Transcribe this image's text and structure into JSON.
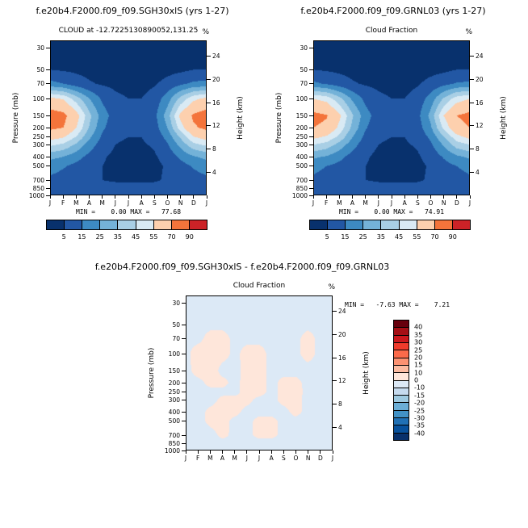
{
  "axes": {
    "pressure_label": "Pressure (mb)",
    "height_label": "Height (km)",
    "pressure_ticks": [
      30,
      50,
      70,
      100,
      150,
      200,
      250,
      300,
      400,
      500,
      700,
      850,
      1000
    ],
    "height_ticks": [
      24,
      20,
      16,
      12,
      8,
      4
    ],
    "months": [
      "J",
      "F",
      "M",
      "A",
      "M",
      "J",
      "J",
      "A",
      "S",
      "O",
      "N",
      "D",
      "J"
    ],
    "top_pressure": 25,
    "bottom_pressure": 1000
  },
  "chart_data": [
    {
      "type": "heatmap",
      "header": "f.e20b4.F2000.f09_f09.SGH30xlS (yrs 1-27)",
      "title": "CLOUD at -12.7225130890052,131.25",
      "units": "%",
      "min_max": "MIN =    0.00 MAX =   77.68",
      "min": 0.0,
      "max": 77.68,
      "x": [
        "J",
        "F",
        "M",
        "A",
        "M",
        "J",
        "J",
        "A",
        "S",
        "O",
        "N",
        "D",
        "J"
      ],
      "y_pressure_mb": [
        30,
        50,
        70,
        100,
        150,
        200,
        250,
        300,
        400,
        500,
        700,
        850,
        1000
      ],
      "levels": [
        5,
        15,
        25,
        35,
        45,
        55,
        70,
        90
      ],
      "colors": [
        "#08316d",
        "#2257a4",
        "#3d8ac2",
        "#74b2d8",
        "#a9cfe5",
        "#d9eaf4",
        "#fdd0ae",
        "#f4743b",
        "#cc2227"
      ],
      "colorbar_labels": [
        "5",
        "15",
        "25",
        "35",
        "45",
        "55",
        "70",
        "90"
      ],
      "values": [
        [
          1,
          1,
          1,
          0,
          0,
          0,
          0,
          0,
          0,
          0,
          1,
          1,
          1
        ],
        [
          5,
          4,
          3,
          2,
          1,
          1,
          1,
          1,
          1,
          2,
          3,
          5,
          5
        ],
        [
          18,
          15,
          10,
          6,
          4,
          3,
          2,
          2,
          4,
          8,
          13,
          17,
          18
        ],
        [
          58,
          54,
          40,
          25,
          13,
          7,
          5,
          5,
          9,
          20,
          38,
          52,
          58
        ],
        [
          77,
          74,
          60,
          38,
          20,
          10,
          8,
          8,
          12,
          30,
          58,
          72,
          77
        ],
        [
          73,
          70,
          55,
          34,
          17,
          8,
          6,
          6,
          10,
          25,
          50,
          68,
          73
        ],
        [
          60,
          56,
          44,
          27,
          13,
          6,
          5,
          5,
          8,
          18,
          36,
          54,
          60
        ],
        [
          47,
          43,
          33,
          20,
          10,
          5,
          4,
          4,
          6,
          14,
          28,
          42,
          47
        ],
        [
          28,
          25,
          19,
          12,
          6,
          3,
          2,
          2,
          4,
          8,
          17,
          24,
          28
        ],
        [
          19,
          16,
          12,
          8,
          5,
          3,
          2,
          2,
          3,
          6,
          11,
          16,
          19
        ],
        [
          13,
          11,
          9,
          7,
          5,
          4,
          4,
          4,
          4,
          6,
          9,
          11,
          13
        ],
        [
          15,
          13,
          11,
          10,
          8,
          8,
          7,
          7,
          8,
          9,
          11,
          13,
          15
        ],
        [
          11,
          10,
          9,
          8,
          8,
          7,
          7,
          7,
          7,
          8,
          9,
          10,
          11
        ]
      ]
    },
    {
      "type": "heatmap",
      "header": "f.e20b4.F2000.f09_f09.GRNL03 (yrs 1-27)",
      "title": "Cloud Fraction",
      "units": "%",
      "min_max": "MIN =    0.00 MAX =   74.91",
      "min": 0.0,
      "max": 74.91,
      "x": [
        "J",
        "F",
        "M",
        "A",
        "M",
        "J",
        "J",
        "A",
        "S",
        "O",
        "N",
        "D",
        "J"
      ],
      "y_pressure_mb": [
        30,
        50,
        70,
        100,
        150,
        200,
        250,
        300,
        400,
        500,
        700,
        850,
        1000
      ],
      "levels": [
        5,
        15,
        25,
        35,
        45,
        55,
        70,
        90
      ],
      "colors": [
        "#08316d",
        "#2257a4",
        "#3d8ac2",
        "#74b2d8",
        "#a9cfe5",
        "#d9eaf4",
        "#fdd0ae",
        "#f4743b",
        "#cc2227"
      ],
      "colorbar_labels": [
        "5",
        "15",
        "25",
        "35",
        "45",
        "55",
        "70",
        "90"
      ],
      "values": [
        [
          1,
          1,
          1,
          0,
          0,
          0,
          0,
          0,
          0,
          0,
          1,
          1,
          1
        ],
        [
          5,
          4,
          3,
          2,
          1,
          1,
          1,
          1,
          1,
          2,
          3,
          5,
          5
        ],
        [
          17,
          14,
          10,
          6,
          4,
          3,
          2,
          2,
          4,
          8,
          12,
          16,
          17
        ],
        [
          55,
          51,
          38,
          23,
          12,
          7,
          5,
          5,
          9,
          19,
          36,
          50,
          55
        ],
        [
          74,
          71,
          57,
          36,
          19,
          10,
          8,
          8,
          12,
          28,
          55,
          70,
          74
        ],
        [
          70,
          67,
          52,
          32,
          16,
          8,
          6,
          6,
          10,
          23,
          47,
          65,
          70
        ],
        [
          58,
          53,
          42,
          25,
          12,
          6,
          5,
          5,
          8,
          17,
          34,
          51,
          58
        ],
        [
          45,
          41,
          31,
          19,
          9,
          5,
          4,
          4,
          6,
          13,
          26,
          40,
          45
        ],
        [
          27,
          24,
          18,
          11,
          6,
          3,
          2,
          2,
          4,
          8,
          16,
          23,
          27
        ],
        [
          18,
          15,
          12,
          8,
          5,
          3,
          2,
          2,
          3,
          6,
          11,
          15,
          18
        ],
        [
          13,
          11,
          9,
          7,
          5,
          4,
          4,
          4,
          4,
          6,
          9,
          11,
          13
        ],
        [
          15,
          14,
          12,
          10,
          9,
          8,
          8,
          8,
          8,
          9,
          11,
          13,
          15
        ],
        [
          12,
          11,
          9,
          8,
          8,
          7,
          7,
          7,
          7,
          8,
          9,
          10,
          12
        ]
      ]
    },
    {
      "type": "heatmap",
      "header": "f.e20b4.F2000.f09_f09.SGH30xlS - f.e20b4.F2000.f09_f09.GRNL03",
      "title": "Cloud Fraction",
      "units": "%",
      "min_max": "MIN =   -7.63 MAX =    7.21",
      "min": -7.63,
      "max": 7.21,
      "x": [
        "J",
        "F",
        "M",
        "A",
        "M",
        "J",
        "J",
        "A",
        "S",
        "O",
        "N",
        "D",
        "J"
      ],
      "y_pressure_mb": [
        30,
        50,
        70,
        100,
        150,
        200,
        250,
        300,
        400,
        500,
        700,
        850,
        1000
      ],
      "levels": [
        -40,
        -35,
        -30,
        -25,
        -20,
        -15,
        -10,
        0,
        10,
        15,
        20,
        25,
        30,
        35,
        40
      ],
      "colors": [
        "#08306b",
        "#08519c",
        "#2171b5",
        "#4292c6",
        "#6baed6",
        "#9ecae1",
        "#c6dbef",
        "#dce9f6",
        "#fee6da",
        "#fcbba1",
        "#fc9272",
        "#fb6a4a",
        "#ef3b2c",
        "#cb181d",
        "#a50f15",
        "#67000d"
      ],
      "colorbar_labels": [
        "40",
        "35",
        "30",
        "25",
        "20",
        "15",
        "10",
        "0",
        "-10",
        "-15",
        "-20",
        "-25",
        "-30",
        "-35",
        "-40"
      ],
      "values": [
        [
          0,
          -1,
          -1,
          -1,
          -1,
          -1,
          -1,
          -1,
          -1,
          -1,
          -1,
          -1,
          0
        ],
        [
          -1,
          -2,
          -2,
          -2,
          -2,
          -2,
          -2,
          -2,
          -2,
          -2,
          -2,
          -2,
          -1
        ],
        [
          -2,
          -2,
          3,
          3,
          -2,
          -2,
          -2,
          -2,
          -2,
          -2,
          3,
          -2,
          -2
        ],
        [
          -2,
          4,
          4,
          3,
          -2,
          3,
          3,
          -2,
          -2,
          -2,
          3,
          -2,
          -2
        ],
        [
          -3,
          4,
          5,
          -3,
          -3,
          3,
          4,
          -3,
          -3,
          -3,
          -3,
          -3,
          -3
        ],
        [
          -3,
          -3,
          3,
          3,
          -3,
          4,
          4,
          -3,
          3,
          3,
          -3,
          -3,
          -3
        ],
        [
          -3,
          -3,
          -3,
          -3,
          -3,
          4,
          4,
          -3,
          3,
          4,
          -3,
          -3,
          -3
        ],
        [
          -3,
          -4,
          -4,
          3,
          3,
          3,
          -3,
          -3,
          3,
          3,
          -3,
          -4,
          -3
        ],
        [
          -3,
          -4,
          3,
          4,
          3,
          -3,
          -3,
          -3,
          -3,
          3,
          -3,
          -4,
          -3
        ],
        [
          -3,
          -4,
          3,
          4,
          -3,
          -3,
          3,
          3,
          -3,
          -3,
          -4,
          -4,
          -3
        ],
        [
          -3,
          -4,
          -4,
          3,
          -3,
          -3,
          3,
          3,
          -3,
          -4,
          -4,
          -4,
          -3
        ],
        [
          -3,
          -4,
          -4,
          -4,
          -4,
          -4,
          -4,
          -4,
          -4,
          -4,
          -4,
          -4,
          -3
        ],
        [
          -2,
          -3,
          -3,
          -3,
          -3,
          -3,
          -3,
          -3,
          -3,
          -3,
          -3,
          -3,
          -2
        ]
      ]
    }
  ]
}
